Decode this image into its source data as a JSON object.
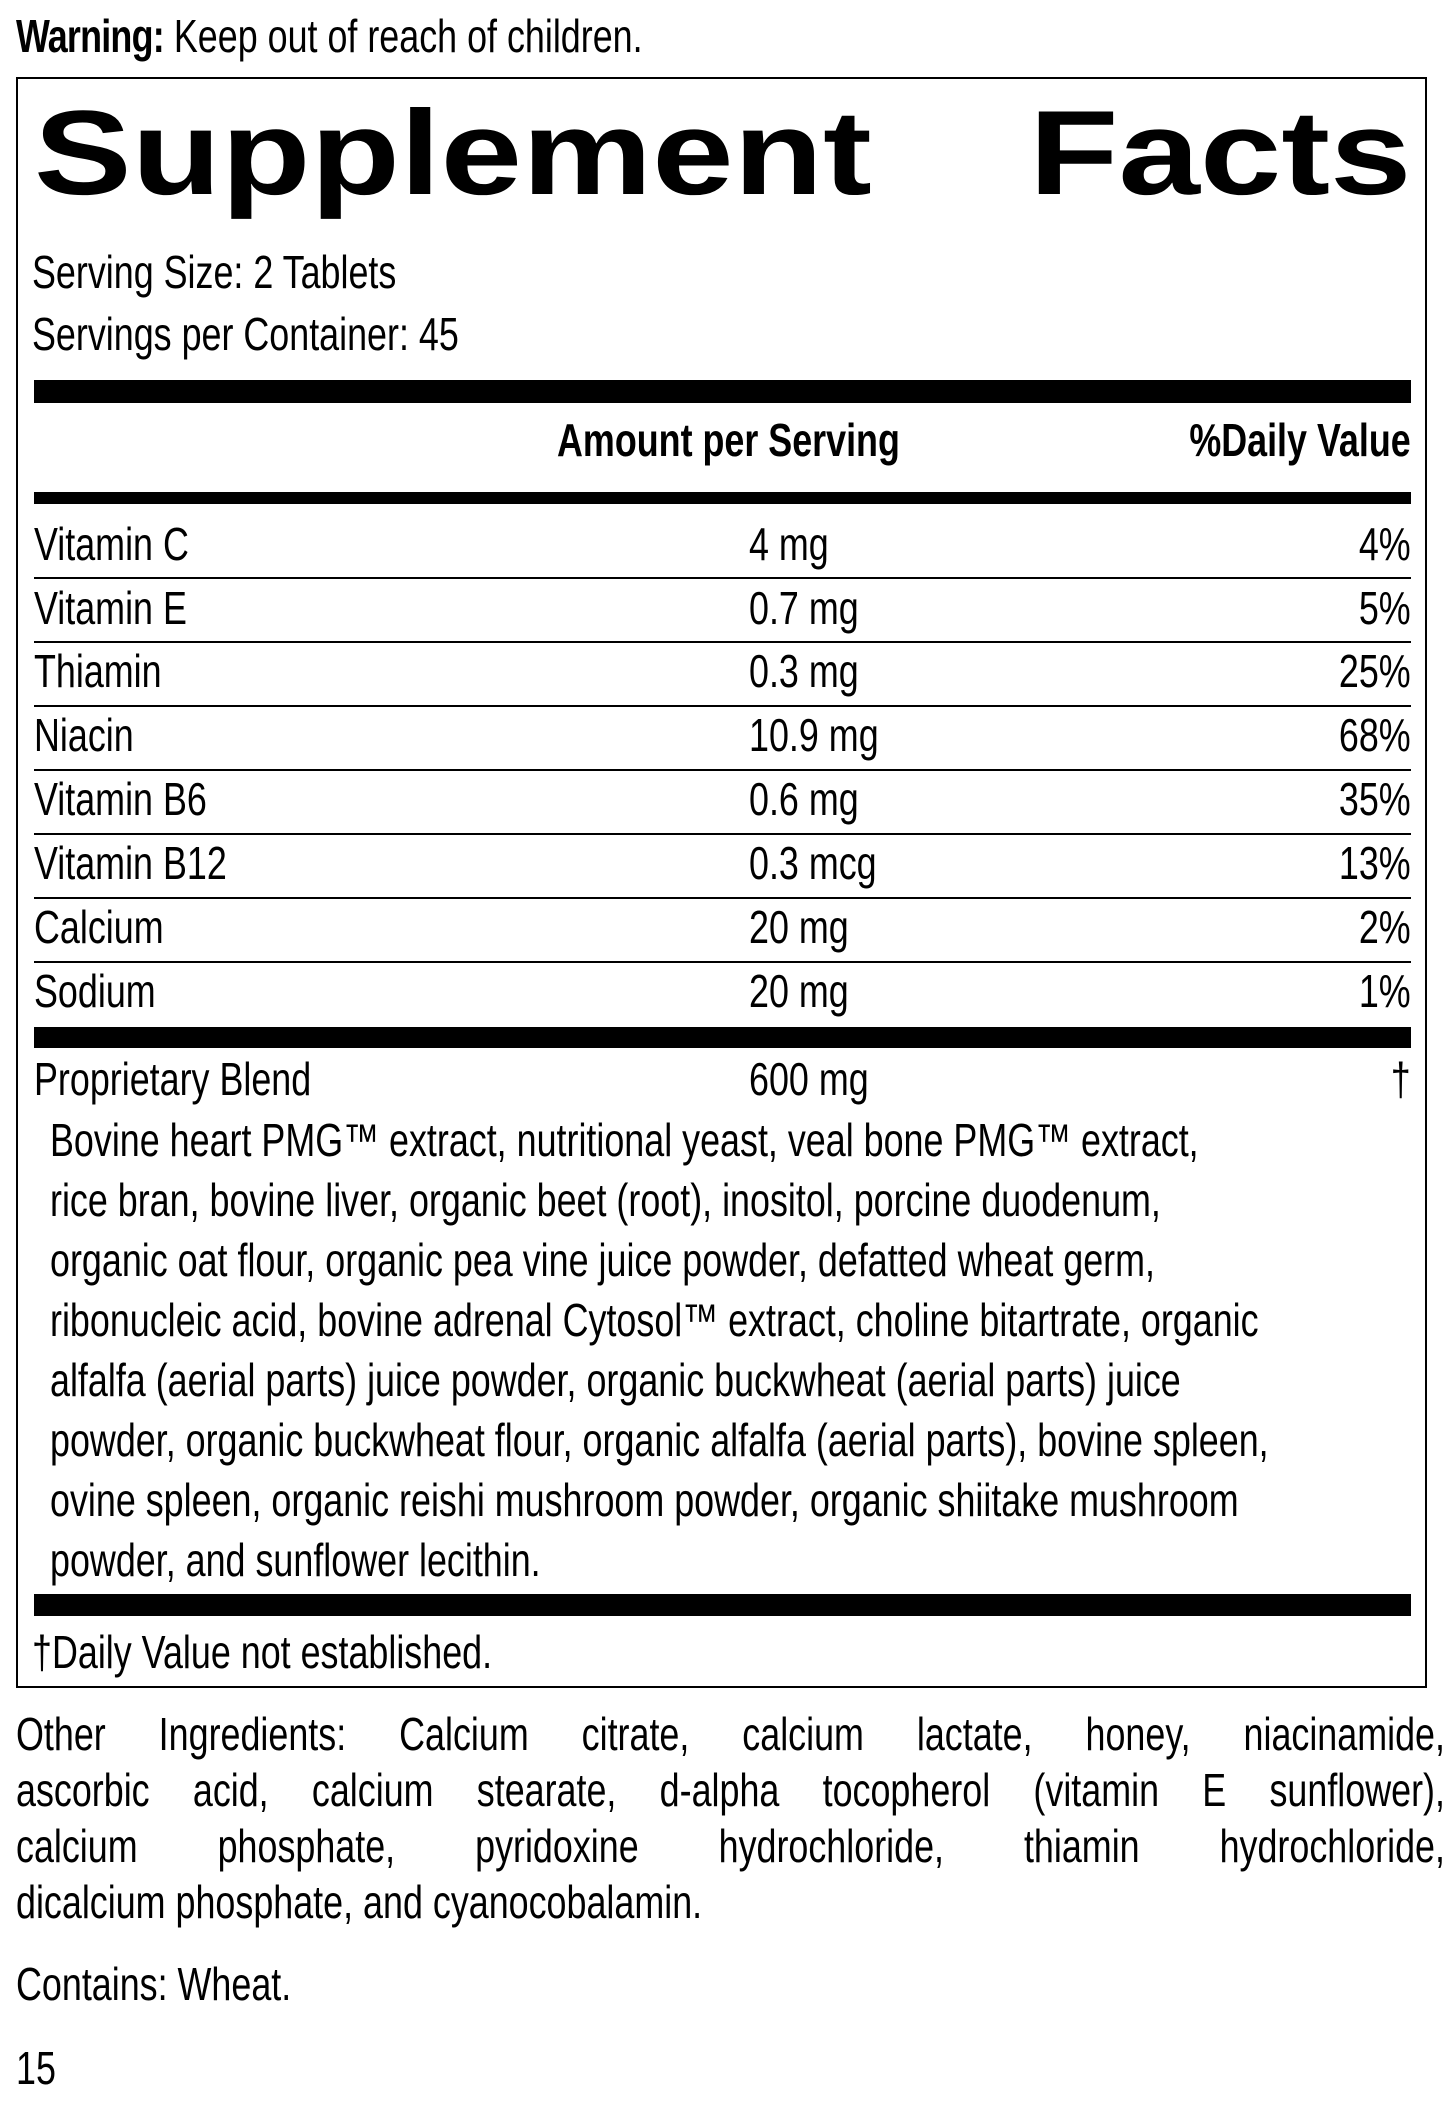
{
  "warning": {
    "label": "Warning:",
    "text": " Keep out of reach of children."
  },
  "title": {
    "word1": "Supplement",
    "word2": "Facts"
  },
  "serving_size": "Serving Size: 2 Tablets",
  "servings_per_container": "Servings per Container: 45",
  "header": {
    "amount": "Amount per Serving",
    "dv": "%Daily Value"
  },
  "nutrients": [
    {
      "name": "Vitamin C",
      "amount": "4 mg",
      "dv": "4%"
    },
    {
      "name": "Vitamin E",
      "amount": "0.7 mg",
      "dv": "5%"
    },
    {
      "name": "Thiamin",
      "amount": "0.3 mg",
      "dv": "25%"
    },
    {
      "name": "Niacin",
      "amount": "10.9 mg",
      "dv": "68%"
    },
    {
      "name": "Vitamin B6",
      "amount": "0.6 mg",
      "dv": "35%"
    },
    {
      "name": "Vitamin B12",
      "amount": "0.3 mcg",
      "dv": "13%"
    },
    {
      "name": "Calcium",
      "amount": "20 mg",
      "dv": "2%"
    },
    {
      "name": "Sodium",
      "amount": "20 mg",
      "dv": "1%"
    }
  ],
  "blend": {
    "name": "Proprietary Blend",
    "amount": "600 mg",
    "dv": "†",
    "lines": [
      "Bovine heart PMG™ extract, nutritional yeast, veal bone PMG™ extract,",
      "rice bran, bovine liver, organic beet (root), inositol, porcine duodenum,",
      "organic oat flour, organic pea vine juice powder, defatted wheat germ,",
      "ribonucleic acid, bovine adrenal Cytosol™ extract, choline bitartrate, organic",
      "alfalfa (aerial parts) juice powder, organic buckwheat (aerial parts) juice",
      "powder, organic buckwheat flour, organic alfalfa (aerial parts), bovine spleen,",
      "ovine spleen, organic reishi mushroom powder, organic shiitake mushroom",
      "powder, and sunflower lecithin."
    ]
  },
  "footnote": "†Daily Value not established.",
  "other_ingredients": [
    "Other Ingredients: Calcium citrate, calcium lactate, honey, niacinamide,",
    "ascorbic acid, calcium stearate, d-alpha tocopherol (vitamin E sunflower),",
    "calcium phosphate, pyridoxine hydrochloride, thiamin hydrochloride,",
    "dicalcium phosphate, and cyanocobalamin."
  ],
  "contains": "Contains: Wheat.",
  "page_number": "15"
}
